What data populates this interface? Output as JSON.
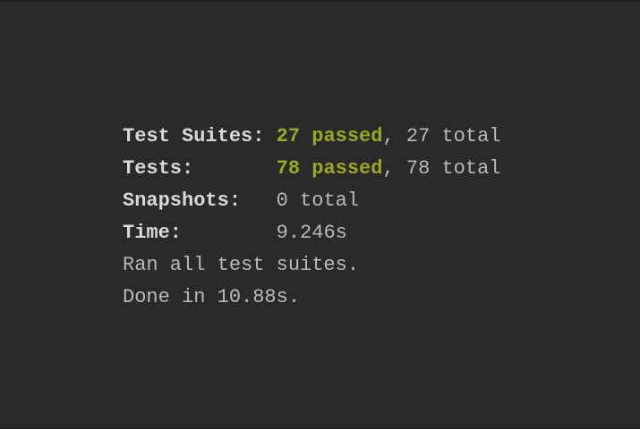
{
  "window": {
    "background": "#2a2a2a",
    "edge_color": "#1f1f1f"
  },
  "colors": {
    "label": "#d9d9d9",
    "text": "#b9b9b9",
    "passed_green": "#9aa827"
  },
  "report": {
    "lines": [
      {
        "label": "Test Suites:",
        "pad": " ",
        "passed": "27 passed",
        "rest": ", 27 total"
      },
      {
        "label": "Tests:",
        "pad": "       ",
        "passed": "78 passed",
        "rest": ", 78 total"
      },
      {
        "label": "Snapshots:",
        "pad": "   ",
        "passed": "",
        "rest": "0 total"
      },
      {
        "label": "Time:",
        "pad": "        ",
        "passed": "",
        "rest": "9.246s"
      }
    ],
    "footer_lines": [
      "Ran all test suites.",
      "Done in 10.88s."
    ]
  }
}
